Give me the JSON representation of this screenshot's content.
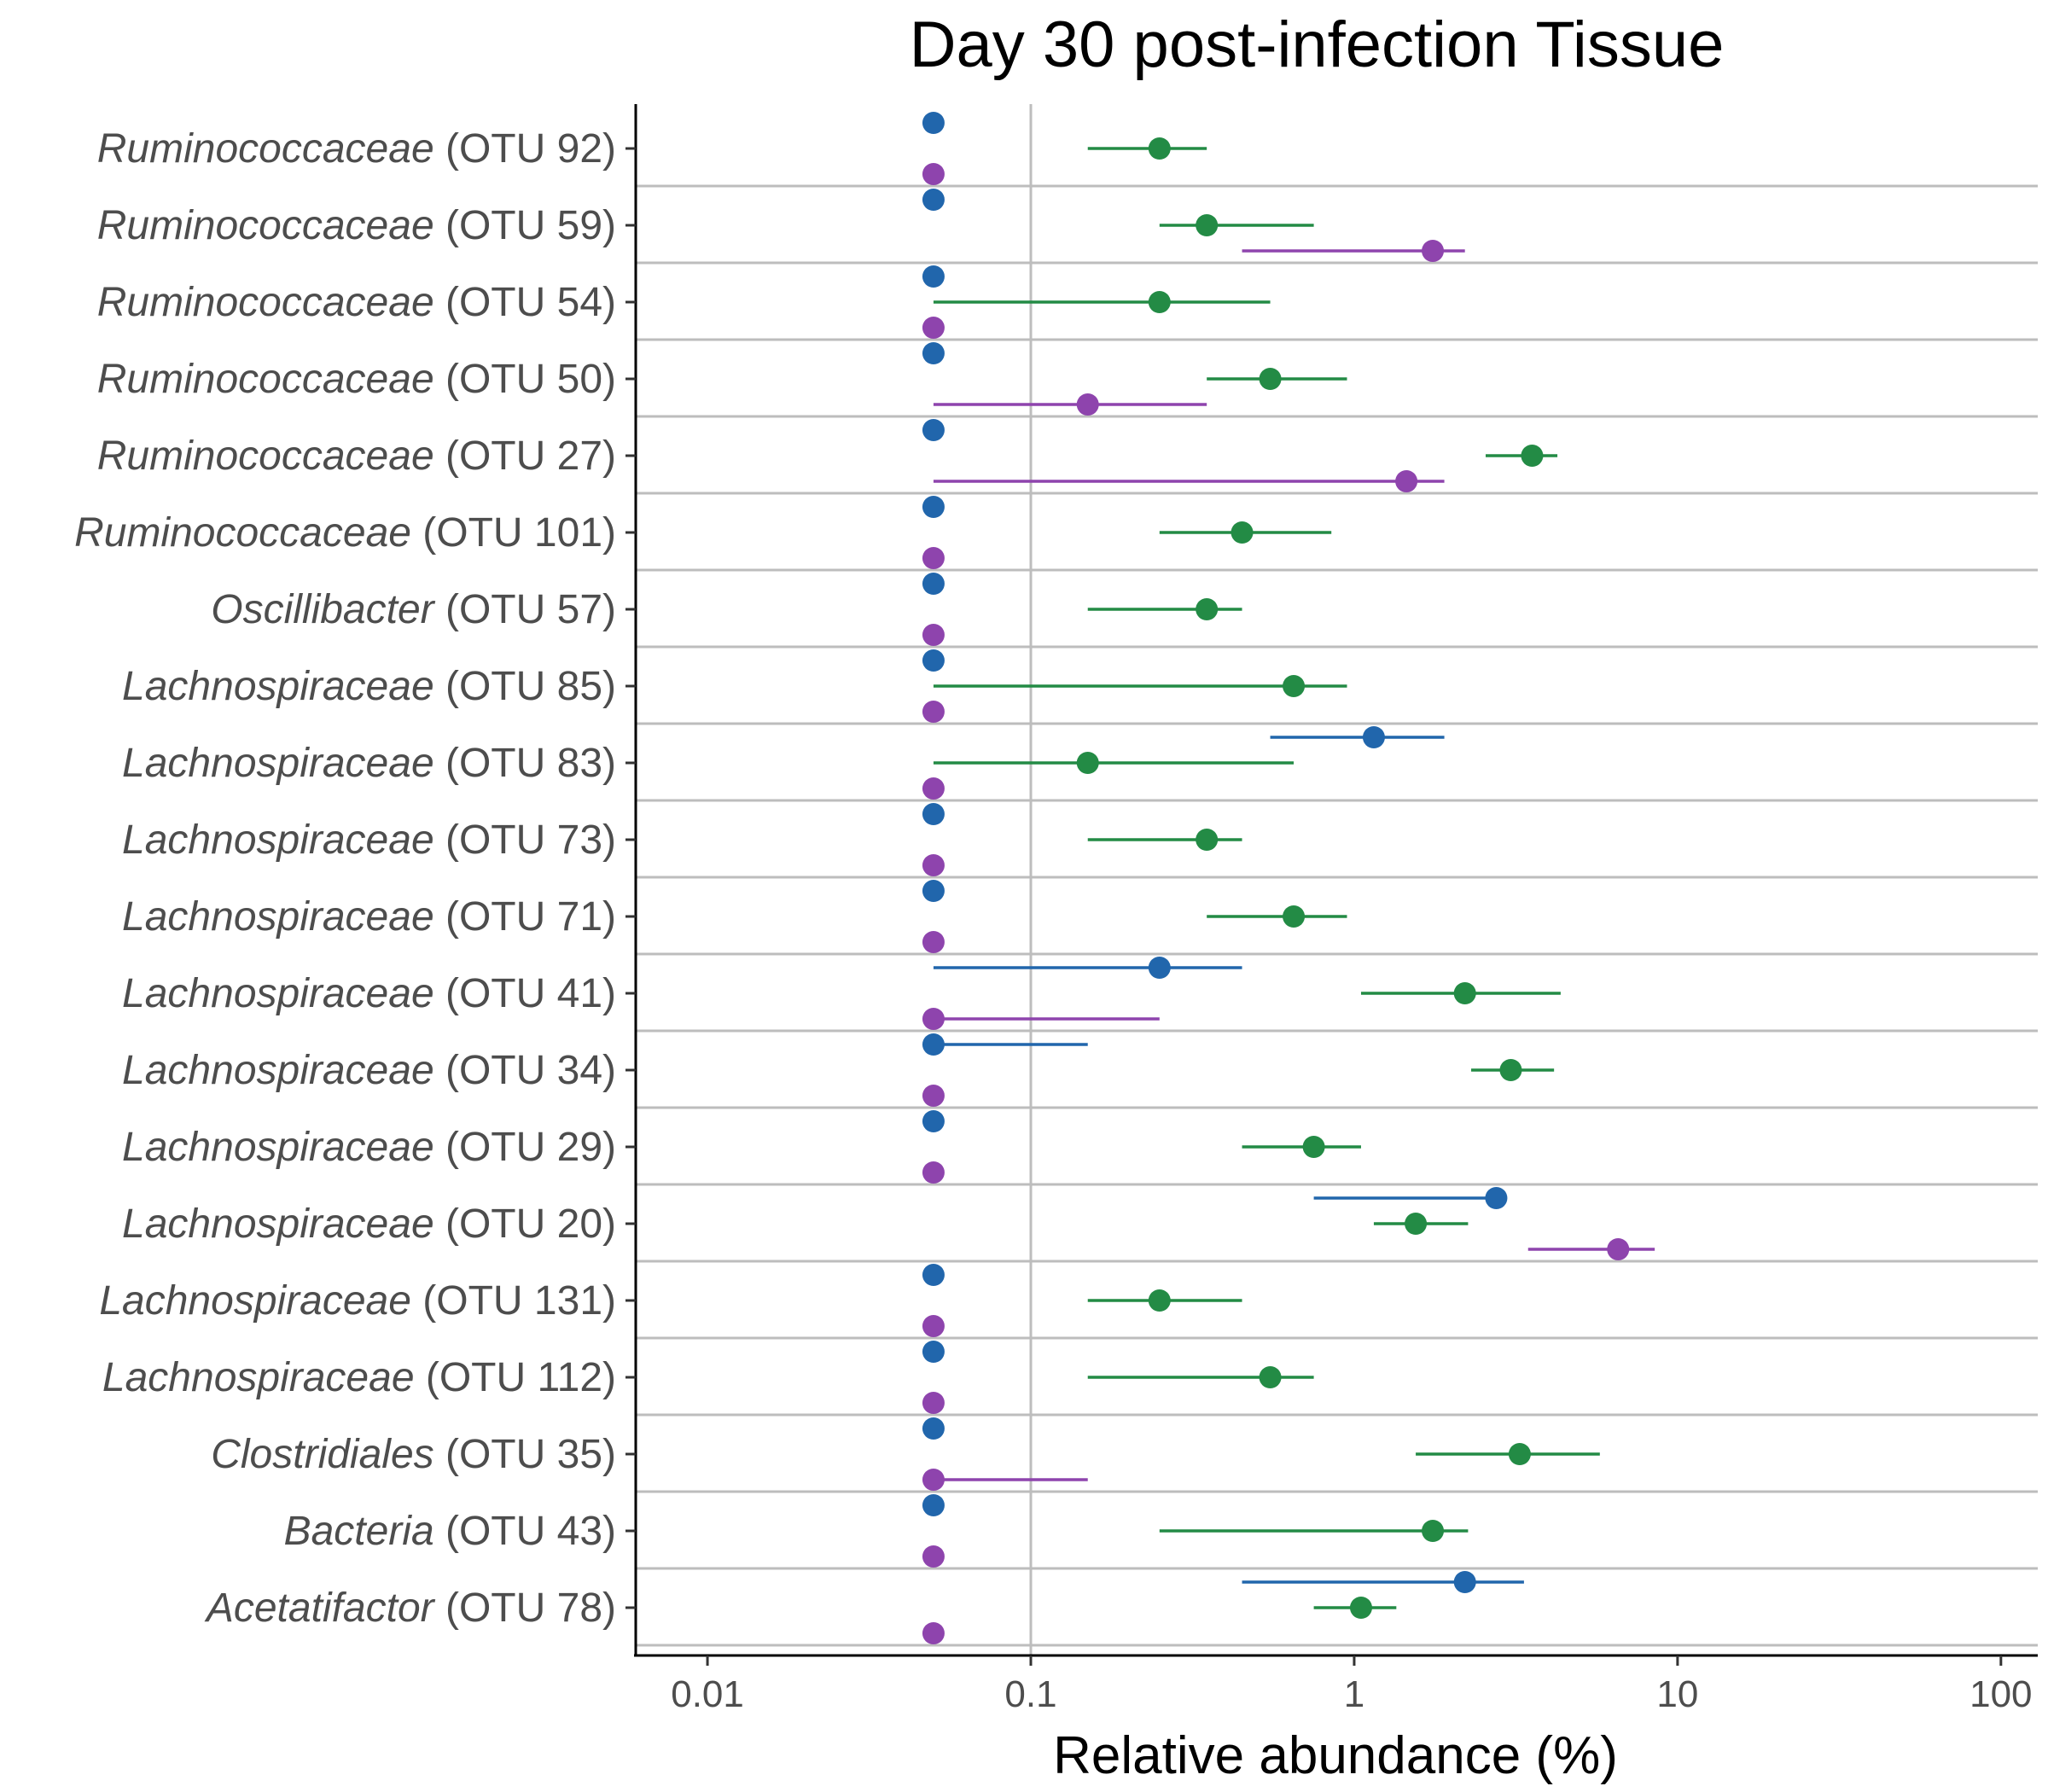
{
  "chart_data": {
    "type": "scatter",
    "title": "Day 30 post-infection Tissue",
    "xlabel": "Relative abundance (%)",
    "ylabel": "",
    "x_scale": "log10",
    "xlim": [
      0.006,
      130
    ],
    "x_ticks": [
      0.01,
      0.1,
      1,
      10,
      100
    ],
    "x_tick_labels": [
      "0.01",
      "0.1",
      "1",
      "10",
      "100"
    ],
    "vertical_reference_line": 0.1,
    "grid": "horizontal separators between categories",
    "legend": "none",
    "series": [
      {
        "color": "#2166ac"
      },
      {
        "color": "#238b45"
      },
      {
        "color": "#8e44ad"
      }
    ],
    "categories": [
      {
        "taxon": "Ruminococcaceae",
        "otu": "(OTU 92)",
        "points": [
          [
            0.05,
            0.05,
            0.05
          ],
          [
            0.25,
            0.15,
            0.35
          ],
          [
            0.05,
            0.05,
            0.05
          ]
        ]
      },
      {
        "taxon": "Ruminococcaceae",
        "otu": "(OTU 59)",
        "points": [
          [
            0.05,
            0.05,
            0.05
          ],
          [
            0.35,
            0.25,
            0.75
          ],
          [
            1.75,
            0.45,
            2.2
          ]
        ]
      },
      {
        "taxon": "Ruminococcaceae",
        "otu": "(OTU 54)",
        "points": [
          [
            0.05,
            0.05,
            0.05
          ],
          [
            0.25,
            0.05,
            0.55
          ],
          [
            0.05,
            0.05,
            0.05
          ]
        ]
      },
      {
        "taxon": "Ruminococcaceae",
        "otu": "(OTU 50)",
        "points": [
          [
            0.05,
            0.05,
            0.05
          ],
          [
            0.55,
            0.35,
            0.95
          ],
          [
            0.15,
            0.05,
            0.35
          ]
        ]
      },
      {
        "taxon": "Ruminococcaceae",
        "otu": "(OTU 27)",
        "points": [
          [
            0.05,
            0.05,
            0.05
          ],
          [
            3.55,
            2.55,
            4.25
          ],
          [
            1.45,
            0.05,
            1.9
          ]
        ]
      },
      {
        "taxon": "Ruminococcaceae",
        "otu": "(OTU 101)",
        "points": [
          [
            0.05,
            0.05,
            0.05
          ],
          [
            0.45,
            0.25,
            0.85
          ],
          [
            0.05,
            0.05,
            0.05
          ]
        ]
      },
      {
        "taxon": "Oscillibacter",
        "otu": "(OTU 57)",
        "points": [
          [
            0.05,
            0.05,
            0.05
          ],
          [
            0.35,
            0.15,
            0.45
          ],
          [
            0.05,
            0.05,
            0.05
          ]
        ]
      },
      {
        "taxon": "Lachnospiraceae",
        "otu": "(OTU 85)",
        "points": [
          [
            0.05,
            0.05,
            0.05
          ],
          [
            0.65,
            0.05,
            0.95
          ],
          [
            0.05,
            0.05,
            0.05
          ]
        ]
      },
      {
        "taxon": "Lachnospiraceae",
        "otu": "(OTU 83)",
        "points": [
          [
            1.15,
            0.55,
            1.9
          ],
          [
            0.15,
            0.05,
            0.65
          ],
          [
            0.05,
            0.05,
            0.05
          ]
        ]
      },
      {
        "taxon": "Lachnospiraceae",
        "otu": "(OTU 73)",
        "points": [
          [
            0.05,
            0.05,
            0.05
          ],
          [
            0.35,
            0.15,
            0.45
          ],
          [
            0.05,
            0.05,
            0.05
          ]
        ]
      },
      {
        "taxon": "Lachnospiraceae",
        "otu": "(OTU 71)",
        "points": [
          [
            0.05,
            0.05,
            0.05
          ],
          [
            0.65,
            0.35,
            0.95
          ],
          [
            0.05,
            0.05,
            0.05
          ]
        ]
      },
      {
        "taxon": "Lachnospiraceae",
        "otu": "(OTU 41)",
        "points": [
          [
            0.25,
            0.05,
            0.45
          ],
          [
            2.2,
            1.05,
            4.35
          ],
          [
            0.05,
            0.05,
            0.25
          ]
        ]
      },
      {
        "taxon": "Lachnospiraceae",
        "otu": "(OTU 34)",
        "points": [
          [
            0.05,
            0.05,
            0.15
          ],
          [
            3.05,
            2.3,
            4.15
          ],
          [
            0.05,
            0.05,
            0.05
          ]
        ]
      },
      {
        "taxon": "Lachnospiraceae",
        "otu": "(OTU 29)",
        "points": [
          [
            0.05,
            0.05,
            0.05
          ],
          [
            0.75,
            0.45,
            1.05
          ],
          [
            0.05,
            0.05,
            0.05
          ]
        ]
      },
      {
        "taxon": "Lachnospiraceae",
        "otu": "(OTU 20)",
        "points": [
          [
            2.75,
            0.75,
            2.75
          ],
          [
            1.55,
            1.15,
            2.25
          ],
          [
            6.55,
            3.45,
            8.5
          ]
        ]
      },
      {
        "taxon": "Lachnospiraceae",
        "otu": "(OTU 131)",
        "points": [
          [
            0.05,
            0.05,
            0.05
          ],
          [
            0.25,
            0.15,
            0.45
          ],
          [
            0.05,
            0.05,
            0.05
          ]
        ]
      },
      {
        "taxon": "Lachnospiraceae",
        "otu": "(OTU 112)",
        "points": [
          [
            0.05,
            0.05,
            0.05
          ],
          [
            0.55,
            0.15,
            0.75
          ],
          [
            0.05,
            0.05,
            0.05
          ]
        ]
      },
      {
        "taxon": "Clostridiales",
        "otu": "(OTU 35)",
        "points": [
          [
            0.05,
            0.05,
            0.05
          ],
          [
            3.25,
            1.55,
            5.75
          ],
          [
            0.05,
            0.05,
            0.15
          ]
        ]
      },
      {
        "taxon": "Bacteria",
        "otu": "(OTU 43)",
        "points": [
          [
            0.05,
            0.05,
            0.05
          ],
          [
            1.75,
            0.25,
            2.25
          ],
          [
            0.05,
            0.05,
            0.05
          ]
        ]
      },
      {
        "taxon": "Acetatifactor",
        "otu": "(OTU 78)",
        "points": [
          [
            2.2,
            0.45,
            3.35
          ],
          [
            1.05,
            0.75,
            1.35
          ],
          [
            0.05,
            0.05,
            0.05
          ]
        ]
      }
    ]
  }
}
